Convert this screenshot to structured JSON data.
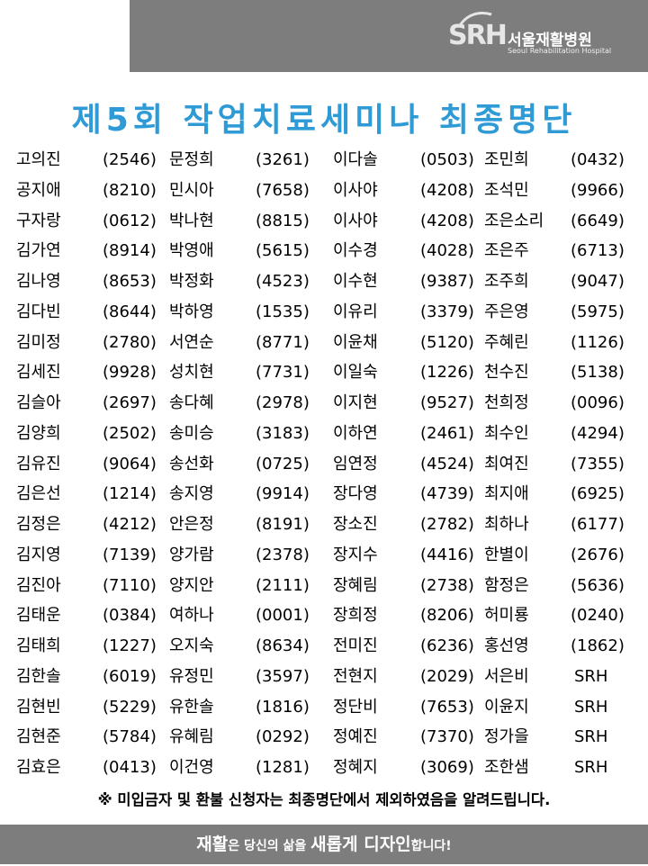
{
  "header": {
    "logo_mark": "SRH",
    "org_name_kr": "서울재활병원",
    "org_name_en": "Seoul Rehabilitation Hospital"
  },
  "title": "제5회 작업치료세미나 최종명단",
  "roster": [
    [
      [
        "고의진",
        "(2546)"
      ],
      [
        "문정희",
        "(3261)"
      ],
      [
        "이다솔",
        "(0503)"
      ],
      [
        "조민희",
        "(0432)"
      ]
    ],
    [
      [
        "공지애",
        "(8210)"
      ],
      [
        "민시아",
        "(7658)"
      ],
      [
        "이사야",
        "(4208)"
      ],
      [
        "조석민",
        "(9966)"
      ]
    ],
    [
      [
        "구자랑",
        "(0612)"
      ],
      [
        "박나현",
        "(8815)"
      ],
      [
        "이사야",
        "(4208)"
      ],
      [
        "조은소리",
        "(6649)"
      ]
    ],
    [
      [
        "김가연",
        "(8914)"
      ],
      [
        "박영애",
        "(5615)"
      ],
      [
        "이수경",
        "(4028)"
      ],
      [
        "조은주",
        "(6713)"
      ]
    ],
    [
      [
        "김나영",
        "(8653)"
      ],
      [
        "박정화",
        "(4523)"
      ],
      [
        "이수현",
        "(9387)"
      ],
      [
        "조주희",
        "(9047)"
      ]
    ],
    [
      [
        "김다빈",
        "(8644)"
      ],
      [
        "박하영",
        "(1535)"
      ],
      [
        "이유리",
        "(3379)"
      ],
      [
        "주은영",
        "(5975)"
      ]
    ],
    [
      [
        "김미정",
        "(2780)"
      ],
      [
        "서연순",
        "(8771)"
      ],
      [
        "이윤채",
        "(5120)"
      ],
      [
        "주혜린",
        "(1126)"
      ]
    ],
    [
      [
        "김세진",
        "(9928)"
      ],
      [
        "성치현",
        "(7731)"
      ],
      [
        "이일숙",
        "(1226)"
      ],
      [
        "천수진",
        "(5138)"
      ]
    ],
    [
      [
        "김슬아",
        "(2697)"
      ],
      [
        "송다혜",
        "(2978)"
      ],
      [
        "이지현",
        "(9527)"
      ],
      [
        "천희정",
        "(0096)"
      ]
    ],
    [
      [
        "김양희",
        "(2502)"
      ],
      [
        "송미승",
        "(3183)"
      ],
      [
        "이하연",
        "(2461)"
      ],
      [
        "최수인",
        "(4294)"
      ]
    ],
    [
      [
        "김유진",
        "(9064)"
      ],
      [
        "송선화",
        "(0725)"
      ],
      [
        "임연정",
        "(4524)"
      ],
      [
        "최여진",
        "(7355)"
      ]
    ],
    [
      [
        "김은선",
        "(1214)"
      ],
      [
        "송지영",
        "(9914)"
      ],
      [
        "장다영",
        "(4739)"
      ],
      [
        "최지애",
        "(6925)"
      ]
    ],
    [
      [
        "김정은",
        "(4212)"
      ],
      [
        "안은정",
        "(8191)"
      ],
      [
        "장소진",
        "(2782)"
      ],
      [
        "최하나",
        "(6177)"
      ]
    ],
    [
      [
        "김지영",
        "(7139)"
      ],
      [
        "양가람",
        "(2378)"
      ],
      [
        "장지수",
        "(4416)"
      ],
      [
        "한별이",
        "(2676)"
      ]
    ],
    [
      [
        "김진아",
        "(7110)"
      ],
      [
        "양지안",
        "(2111)"
      ],
      [
        "장혜림",
        "(2738)"
      ],
      [
        "함정은",
        "(5636)"
      ]
    ],
    [
      [
        "김태운",
        "(0384)"
      ],
      [
        "여하나",
        "(0001)"
      ],
      [
        "장희정",
        "(8206)"
      ],
      [
        "허미룡",
        "(0240)"
      ]
    ],
    [
      [
        "김태희",
        "(1227)"
      ],
      [
        "오지숙",
        "(8634)"
      ],
      [
        "전미진",
        "(6236)"
      ],
      [
        "홍선영",
        "(1862)"
      ]
    ],
    [
      [
        "김한솔",
        "(6019)"
      ],
      [
        "유정민",
        "(3597)"
      ],
      [
        "전현지",
        "(2029)"
      ],
      [
        "서은비",
        "SRH"
      ]
    ],
    [
      [
        "김현빈",
        "(5229)"
      ],
      [
        "유한솔",
        "(1816)"
      ],
      [
        "정단비",
        "(7653)"
      ],
      [
        "이윤지",
        "SRH"
      ]
    ],
    [
      [
        "김현준",
        "(5784)"
      ],
      [
        "유혜림",
        "(0292)"
      ],
      [
        "정예진",
        "(7370)"
      ],
      [
        "정가을",
        "SRH"
      ]
    ],
    [
      [
        "김효은",
        "(0413)"
      ],
      [
        "이건영",
        "(1281)"
      ],
      [
        "정혜지",
        "(3069)"
      ],
      [
        "조한샘",
        "SRH"
      ]
    ]
  ],
  "notice": "※ 미입금자 및 환불 신청자는 최종명단에서 제외하였음을 알려드립니다.",
  "footer": {
    "part1": "재활",
    "part2": "은 당신의 삶을 ",
    "part3": "새롭게 디자인",
    "part4": "합니다!"
  },
  "colors": {
    "title": "#2e9ad6",
    "header_bar": "#7d7d7d",
    "footer_bar": "#7d7d7d",
    "text": "#000000"
  }
}
